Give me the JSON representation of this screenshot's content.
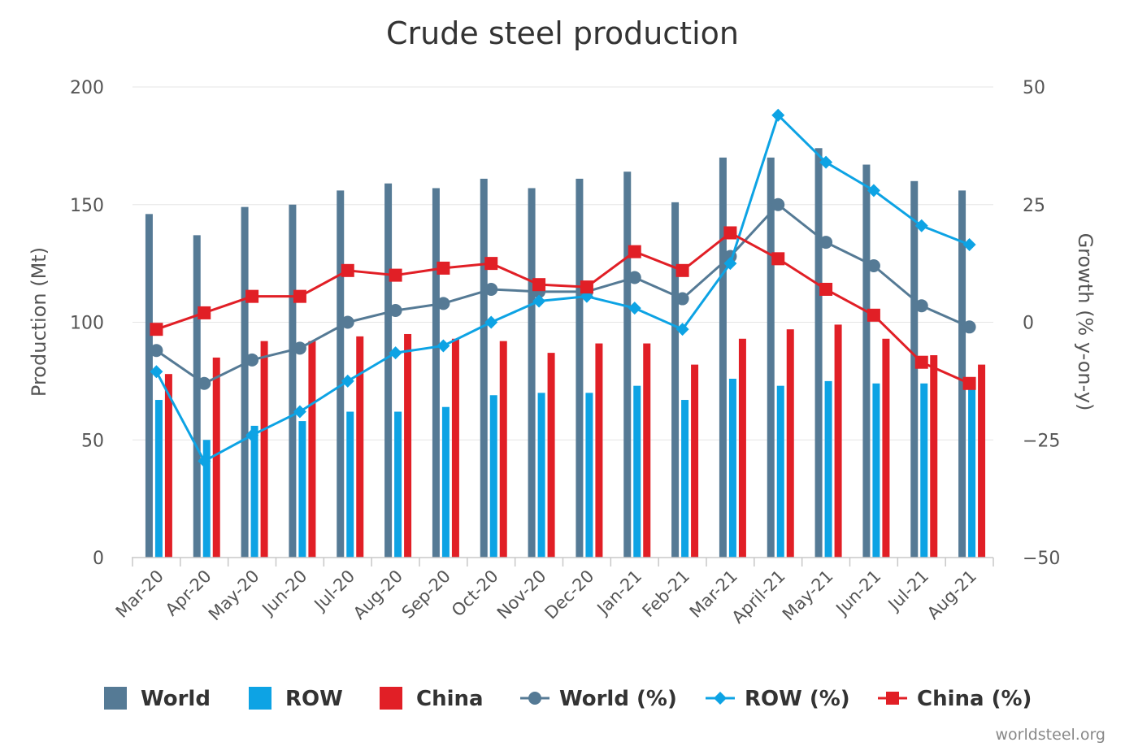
{
  "chart_data": {
    "type": "bar",
    "title": "Crude steel production",
    "categories": [
      "Mar-20",
      "Apr-20",
      "May-20",
      "Jun-20",
      "Jul-20",
      "Aug-20",
      "Sep-20",
      "Oct-20",
      "Nov-20",
      "Dec-20",
      "Jan-21",
      "Feb-21",
      "Mar-21",
      "April-21",
      "May-21",
      "Jun-21",
      "Jul-21",
      "Aug-21"
    ],
    "ylabel": "Production (Mt)",
    "y2label": "Growth (% y-on-y)",
    "ylim": [
      0,
      200
    ],
    "y2lim": [
      -50,
      50
    ],
    "yticks": [
      "0",
      "50",
      "100",
      "150",
      "200"
    ],
    "y2ticks": [
      "−50",
      "−25",
      "0",
      "25",
      "50"
    ],
    "grid": true,
    "legend_position": "bottom",
    "bar_series": [
      {
        "name": "World",
        "color": "#557a95",
        "values": [
          146,
          137,
          149,
          150,
          156,
          159,
          157,
          161,
          157,
          161,
          164,
          151,
          170,
          170,
          174,
          167,
          160,
          156
        ]
      },
      {
        "name": "ROW",
        "color": "#0da3e4",
        "values": [
          67,
          50,
          56,
          58,
          62,
          62,
          64,
          69,
          70,
          70,
          73,
          67,
          76,
          73,
          75,
          74,
          74,
          75
        ]
      },
      {
        "name": "China",
        "color": "#e11f26",
        "values": [
          78,
          85,
          92,
          92,
          94,
          95,
          93,
          92,
          87,
          91,
          91,
          82,
          93,
          97,
          99,
          93,
          86,
          82
        ]
      }
    ],
    "line_series": [
      {
        "name": "World (%)",
        "color": "#557a95",
        "marker": "circle",
        "values": [
          -6,
          -13,
          -8,
          -5.5,
          0,
          2.5,
          4,
          7,
          6.5,
          6.5,
          9.5,
          5,
          14,
          25,
          17,
          12,
          3.5,
          -1
        ]
      },
      {
        "name": "ROW (%)",
        "color": "#0da3e4",
        "marker": "diamond",
        "values": [
          -10.5,
          -29.5,
          -24,
          -19,
          -12.5,
          -6.5,
          -5,
          0,
          4.5,
          5.5,
          3,
          -1.5,
          12.5,
          44,
          34,
          28,
          20.5,
          16.5
        ]
      },
      {
        "name": "China (%)",
        "color": "#e11f26",
        "marker": "square",
        "values": [
          -1.5,
          2,
          5.5,
          5.5,
          11,
          10,
          11.5,
          12.5,
          8,
          7.5,
          15,
          11,
          19,
          13.5,
          7,
          1.5,
          -8.5,
          -13
        ]
      }
    ],
    "source": "worldsteel.org"
  }
}
